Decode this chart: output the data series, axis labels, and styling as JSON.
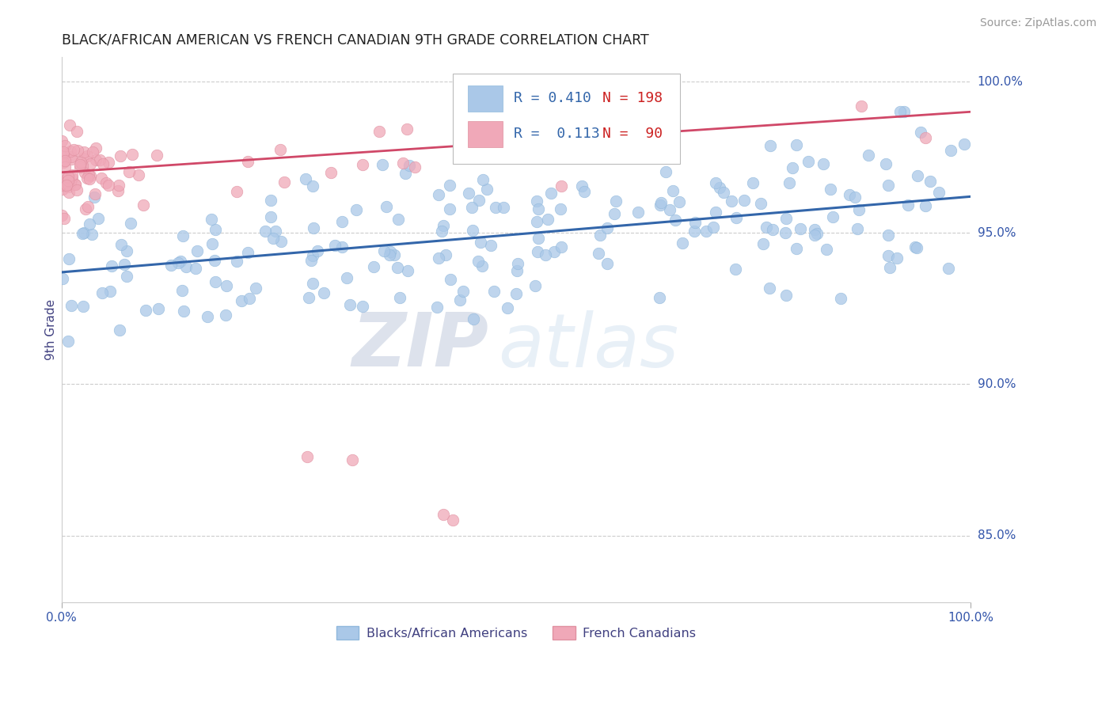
{
  "title": "BLACK/AFRICAN AMERICAN VS FRENCH CANADIAN 9TH GRADE CORRELATION CHART",
  "source": "Source: ZipAtlas.com",
  "ylabel": "9th Grade",
  "xlim": [
    0.0,
    1.0
  ],
  "ylim": [
    0.828,
    1.008
  ],
  "ytick_labels": [
    "85.0%",
    "90.0%",
    "95.0%",
    "100.0%"
  ],
  "ytick_values": [
    0.85,
    0.9,
    0.95,
    1.0
  ],
  "xtick_labels": [
    "0.0%",
    "100.0%"
  ],
  "legend_r_blue": "R = 0.410",
  "legend_n_blue": "N = 198",
  "legend_r_pink": "R =  0.113",
  "legend_n_pink": "N =  90",
  "blue_color": "#aac8e8",
  "blue_edge_color": "#90b8dc",
  "blue_line_color": "#3366aa",
  "pink_color": "#f0a8b8",
  "pink_edge_color": "#e090a0",
  "pink_line_color": "#d04868",
  "title_color": "#222222",
  "axis_label_color": "#404080",
  "tick_label_color": "#3355aa",
  "source_color": "#999999",
  "watermark_zip": "ZIP",
  "watermark_atlas": "atlas",
  "blue_line_start_y": 0.937,
  "blue_line_end_y": 0.962,
  "pink_line_start_y": 0.97,
  "pink_line_end_y": 0.99
}
